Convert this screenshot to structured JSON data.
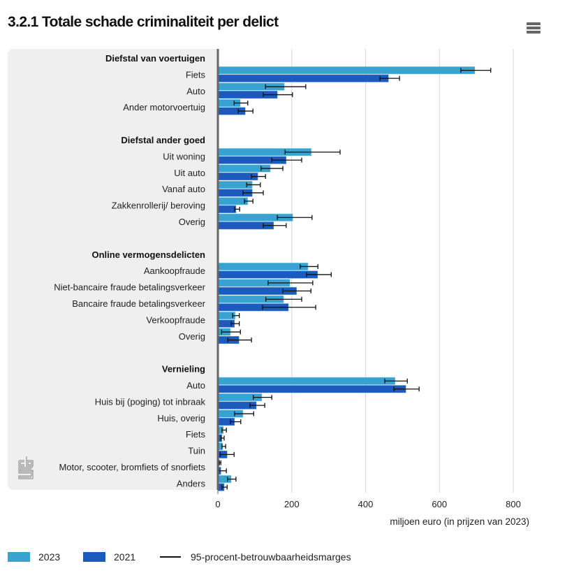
{
  "header": {
    "title": "3.2.1 Totale schade criminaliteit per delict",
    "menu_icon": "hamburger-menu-icon"
  },
  "logo": "cbs-logo",
  "colors": {
    "series_2023": "#38a3d1",
    "series_2021": "#1c5bbd",
    "error_bar": "#111111",
    "grid": "#d6d6d6",
    "axis": "#666666",
    "label_panel": "#efefef"
  },
  "chart_data": {
    "type": "bar",
    "orientation": "horizontal",
    "title": "3.2.1 Totale schade criminaliteit per delict",
    "xlabel": "miljoen euro (in prijzen van 2023)",
    "ylabel": "",
    "xlim": [
      0,
      800
    ],
    "xticks": [
      0,
      200,
      400,
      600,
      800
    ],
    "xtick_labels": [
      "0",
      "200",
      "400",
      "600",
      "800"
    ],
    "grid": true,
    "legend_position": "bottom-left",
    "legend": [
      {
        "label": "2023",
        "kind": "bar"
      },
      {
        "label": "2021",
        "kind": "bar"
      },
      {
        "label": "95-procent-betrouwbaarheidsmarges",
        "kind": "line"
      }
    ],
    "series_names": [
      "2023",
      "2021"
    ],
    "groups": [
      {
        "name": "Diefstal van voertuigen",
        "items": [
          {
            "label": "Fiets",
            "v2023": 696,
            "err2023": [
              658,
              739
            ],
            "v2021": 462,
            "err2021": [
              439,
              492
            ]
          },
          {
            "label": "Auto",
            "v2023": 180,
            "err2023": [
              129,
              238
            ],
            "v2021": 161,
            "err2021": [
              123,
              202
            ]
          },
          {
            "label": "Ander motorvoertuig",
            "v2023": 61,
            "err2023": [
              44,
              81
            ],
            "v2021": 74,
            "err2021": [
              55,
              95
            ]
          }
        ]
      },
      {
        "name": "Diefstal ander goed",
        "items": [
          {
            "label": "Uit woning",
            "v2023": 253,
            "err2023": [
              182,
              331
            ],
            "v2021": 185,
            "err2021": [
              146,
              227
            ]
          },
          {
            "label": "Uit auto",
            "v2023": 142,
            "err2023": [
              117,
              176
            ],
            "v2021": 108,
            "err2021": [
              91,
              129
            ]
          },
          {
            "label": "Vanaf auto",
            "v2023": 93,
            "err2023": [
              78,
              115
            ],
            "v2021": 93,
            "err2021": [
              68,
              123
            ]
          },
          {
            "label": "Zakkenrollerij/ beroving",
            "v2023": 81,
            "err2023": [
              72,
              95
            ],
            "v2021": 49,
            "err2021": [
              45,
              59
            ]
          },
          {
            "label": "Overig",
            "v2023": 203,
            "err2023": [
              161,
              255
            ],
            "v2021": 151,
            "err2021": [
              123,
              185
            ]
          }
        ]
      },
      {
        "name": "Online vermogensdelicten",
        "items": [
          {
            "label": "Aankoopfraude",
            "v2023": 244,
            "err2023": [
              223,
              271
            ],
            "v2021": 270,
            "err2021": [
              240,
              307
            ]
          },
          {
            "label": "Niet-bancaire fraude betalingsverkeer",
            "v2023": 195,
            "err2023": [
              136,
              257
            ],
            "v2021": 213,
            "err2021": [
              176,
              252
            ]
          },
          {
            "label": "Bancaire fraude betalingsverkeer",
            "v2023": 178,
            "err2023": [
              130,
              227
            ],
            "v2021": 191,
            "err2021": [
              121,
              265
            ]
          },
          {
            "label": "Verkoopfraude",
            "v2023": 47,
            "err2023": [
              40,
              58
            ],
            "v2021": 45,
            "err2021": [
              36,
              58
            ]
          },
          {
            "label": "Overig",
            "v2023": 34,
            "err2023": [
              10,
              61
            ],
            "v2021": 57,
            "err2021": [
              27,
              91
            ]
          }
        ]
      },
      {
        "name": "Vernieling",
        "items": [
          {
            "label": "Auto",
            "v2023": 480,
            "err2023": [
              452,
              513
            ],
            "v2021": 509,
            "err2021": [
              477,
              545
            ]
          },
          {
            "label": "Huis bij (poging) tot inbraak",
            "v2023": 119,
            "err2023": [
              96,
              146
            ],
            "v2021": 104,
            "err2021": [
              87,
              127
            ]
          },
          {
            "label": "Huis, overig",
            "v2023": 68,
            "err2023": [
              45,
              97
            ],
            "v2021": 45,
            "err2021": [
              34,
              62
            ]
          },
          {
            "label": "Fiets",
            "v2023": 15,
            "err2023": [
              11,
              23
            ],
            "v2021": 11,
            "err2021": [
              8,
              17
            ]
          },
          {
            "label": "Tuin",
            "v2023": 13,
            "err2023": [
              11,
              21
            ],
            "v2021": 25,
            "err2021": [
              6,
              44
            ]
          },
          {
            "label": "Motor, scooter, bromfiets of snorfiets",
            "v2023": 4,
            "err2023": [
              4,
              8
            ],
            "v2021": 8,
            "err2021": [
              2,
              23
            ]
          },
          {
            "label": "Anders",
            "v2023": 36,
            "err2023": [
              26,
              49
            ],
            "v2021": 17,
            "err2021": [
              11,
              25
            ]
          }
        ]
      }
    ]
  }
}
